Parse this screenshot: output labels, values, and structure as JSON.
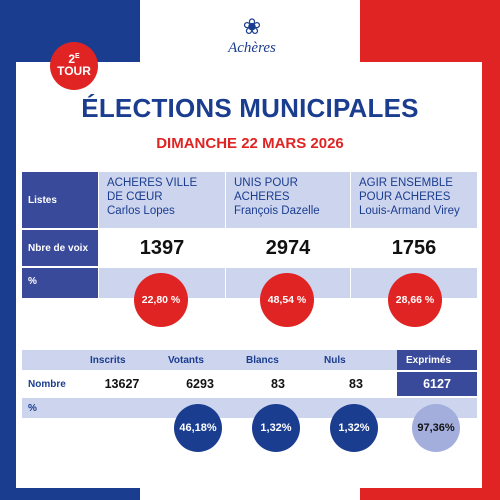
{
  "logo": {
    "text": "Achères"
  },
  "badge": {
    "number": "2",
    "ordinal": "E",
    "word": "TOUR"
  },
  "title": "ÉLECTIONS MUNICIPALES",
  "subtitle": "DIMANCHE 22 MARS 2026",
  "results": {
    "row_labels": {
      "lists": "Listes",
      "votes": "Nbre de voix",
      "percent": "%"
    },
    "lists": [
      {
        "name_line1": "ACHERES VILLE",
        "name_line2": "DE CŒUR",
        "candidate": "Carlos Lopes",
        "votes": "1397",
        "percent": "22,80 %"
      },
      {
        "name_line1": "UNIS POUR",
        "name_line2": "ACHERES",
        "candidate": "François Dazelle",
        "votes": "2974",
        "percent": "48,54 %"
      },
      {
        "name_line1": "AGIR ENSEMBLE",
        "name_line2": "POUR ACHERES",
        "candidate": "Louis-Armand Virey",
        "votes": "1756",
        "percent": "28,66 %"
      }
    ]
  },
  "stats": {
    "row_labels": {
      "count": "Nombre",
      "percent": "%"
    },
    "columns": [
      {
        "label": "Inscrits",
        "value": "13627",
        "percent": ""
      },
      {
        "label": "Votants",
        "value": "6293",
        "percent": "46,18%"
      },
      {
        "label": "Blancs",
        "value": "83",
        "percent": "1,32%"
      },
      {
        "label": "Nuls",
        "value": "83",
        "percent": "1,32%"
      },
      {
        "label": "Exprimés",
        "value": "6127",
        "percent": "97,36%"
      }
    ]
  },
  "colors": {
    "blue": "#1b3d8f",
    "red": "#e02424",
    "light_blue": "#ccd4ee"
  }
}
